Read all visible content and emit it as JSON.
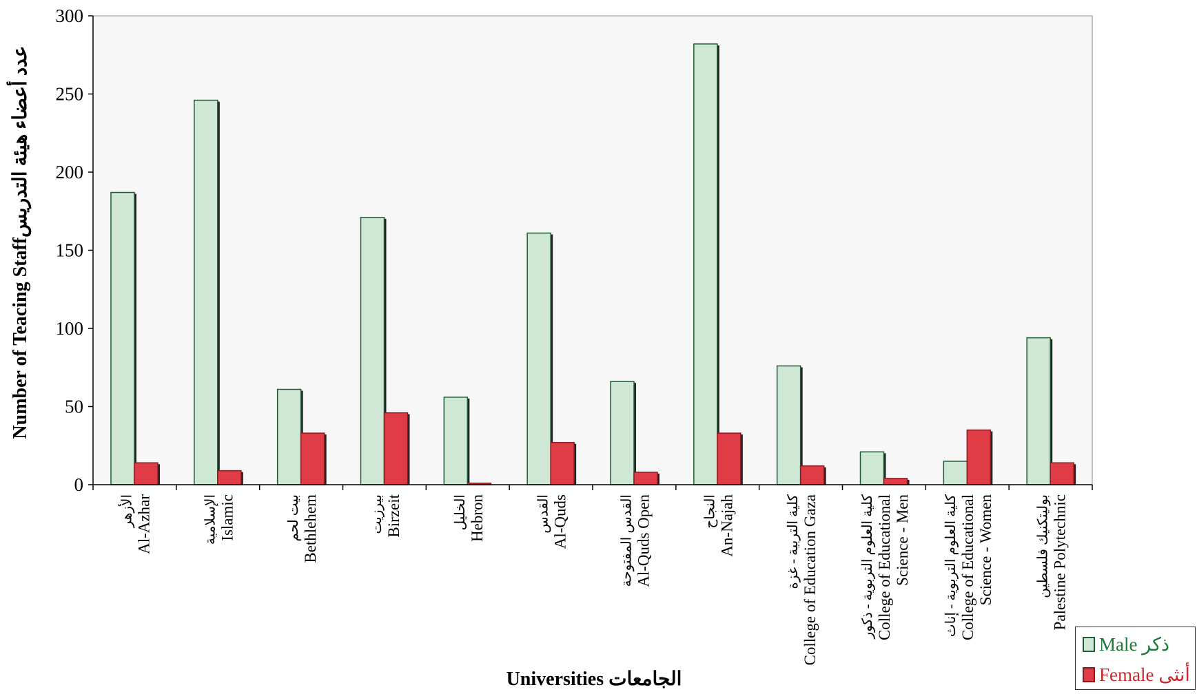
{
  "chart_data": {
    "type": "bar",
    "ylabel": "Number of Teacing Staffعدد أعضاء هيئة التدريس",
    "xlabel": "Universities الجامعات",
    "ylim": [
      0,
      300
    ],
    "yticks": [
      "0",
      "50",
      "100",
      "150",
      "200",
      "250",
      "300"
    ],
    "categories": [
      {
        "ar": "الأزهر",
        "en": [
          "Al-Azhar"
        ]
      },
      {
        "ar": "الإسلامية",
        "en": [
          "Islamic"
        ]
      },
      {
        "ar": "بيت لحم",
        "en": [
          "Bethlehem"
        ]
      },
      {
        "ar": "بيرزيت",
        "en": [
          "Birzeit"
        ]
      },
      {
        "ar": "الخليل",
        "en": [
          "Hebron"
        ]
      },
      {
        "ar": "القدس",
        "en": [
          "Al-Quds"
        ]
      },
      {
        "ar": "القدس المفتوحة",
        "en": [
          "Al-Quds Open"
        ]
      },
      {
        "ar": "النجاح",
        "en": [
          "An-Najah"
        ]
      },
      {
        "ar": "كلية التربية - غزة",
        "en": [
          "College of Education Gaza"
        ]
      },
      {
        "ar": "كلية العلوم التربوية - ذكور",
        "en": [
          "College of Educational",
          "Science - Men"
        ]
      },
      {
        "ar": "كلية العلوم التربوية - إناث",
        "en": [
          "College of Educational",
          "Science - Women"
        ]
      },
      {
        "ar": "بوليتكنيك فلسطين",
        "en": [
          "Palestine Polytechnic"
        ]
      }
    ],
    "series": [
      {
        "name": "Male ذكر",
        "color": "#cfe8d6",
        "stroke": "#1f5a33",
        "values": [
          187,
          246,
          61,
          171,
          56,
          161,
          66,
          282,
          76,
          21,
          15,
          94
        ]
      },
      {
        "name": "Female أنثى",
        "color": "#e03c45",
        "stroke": "#8a1a20",
        "values": [
          14,
          9,
          33,
          46,
          1,
          27,
          8,
          33,
          12,
          4,
          35,
          14
        ]
      }
    ],
    "legend": {
      "placement": "bottom-right",
      "male": "Male ذكر",
      "female": "Female أنثى"
    },
    "grid": false
  }
}
